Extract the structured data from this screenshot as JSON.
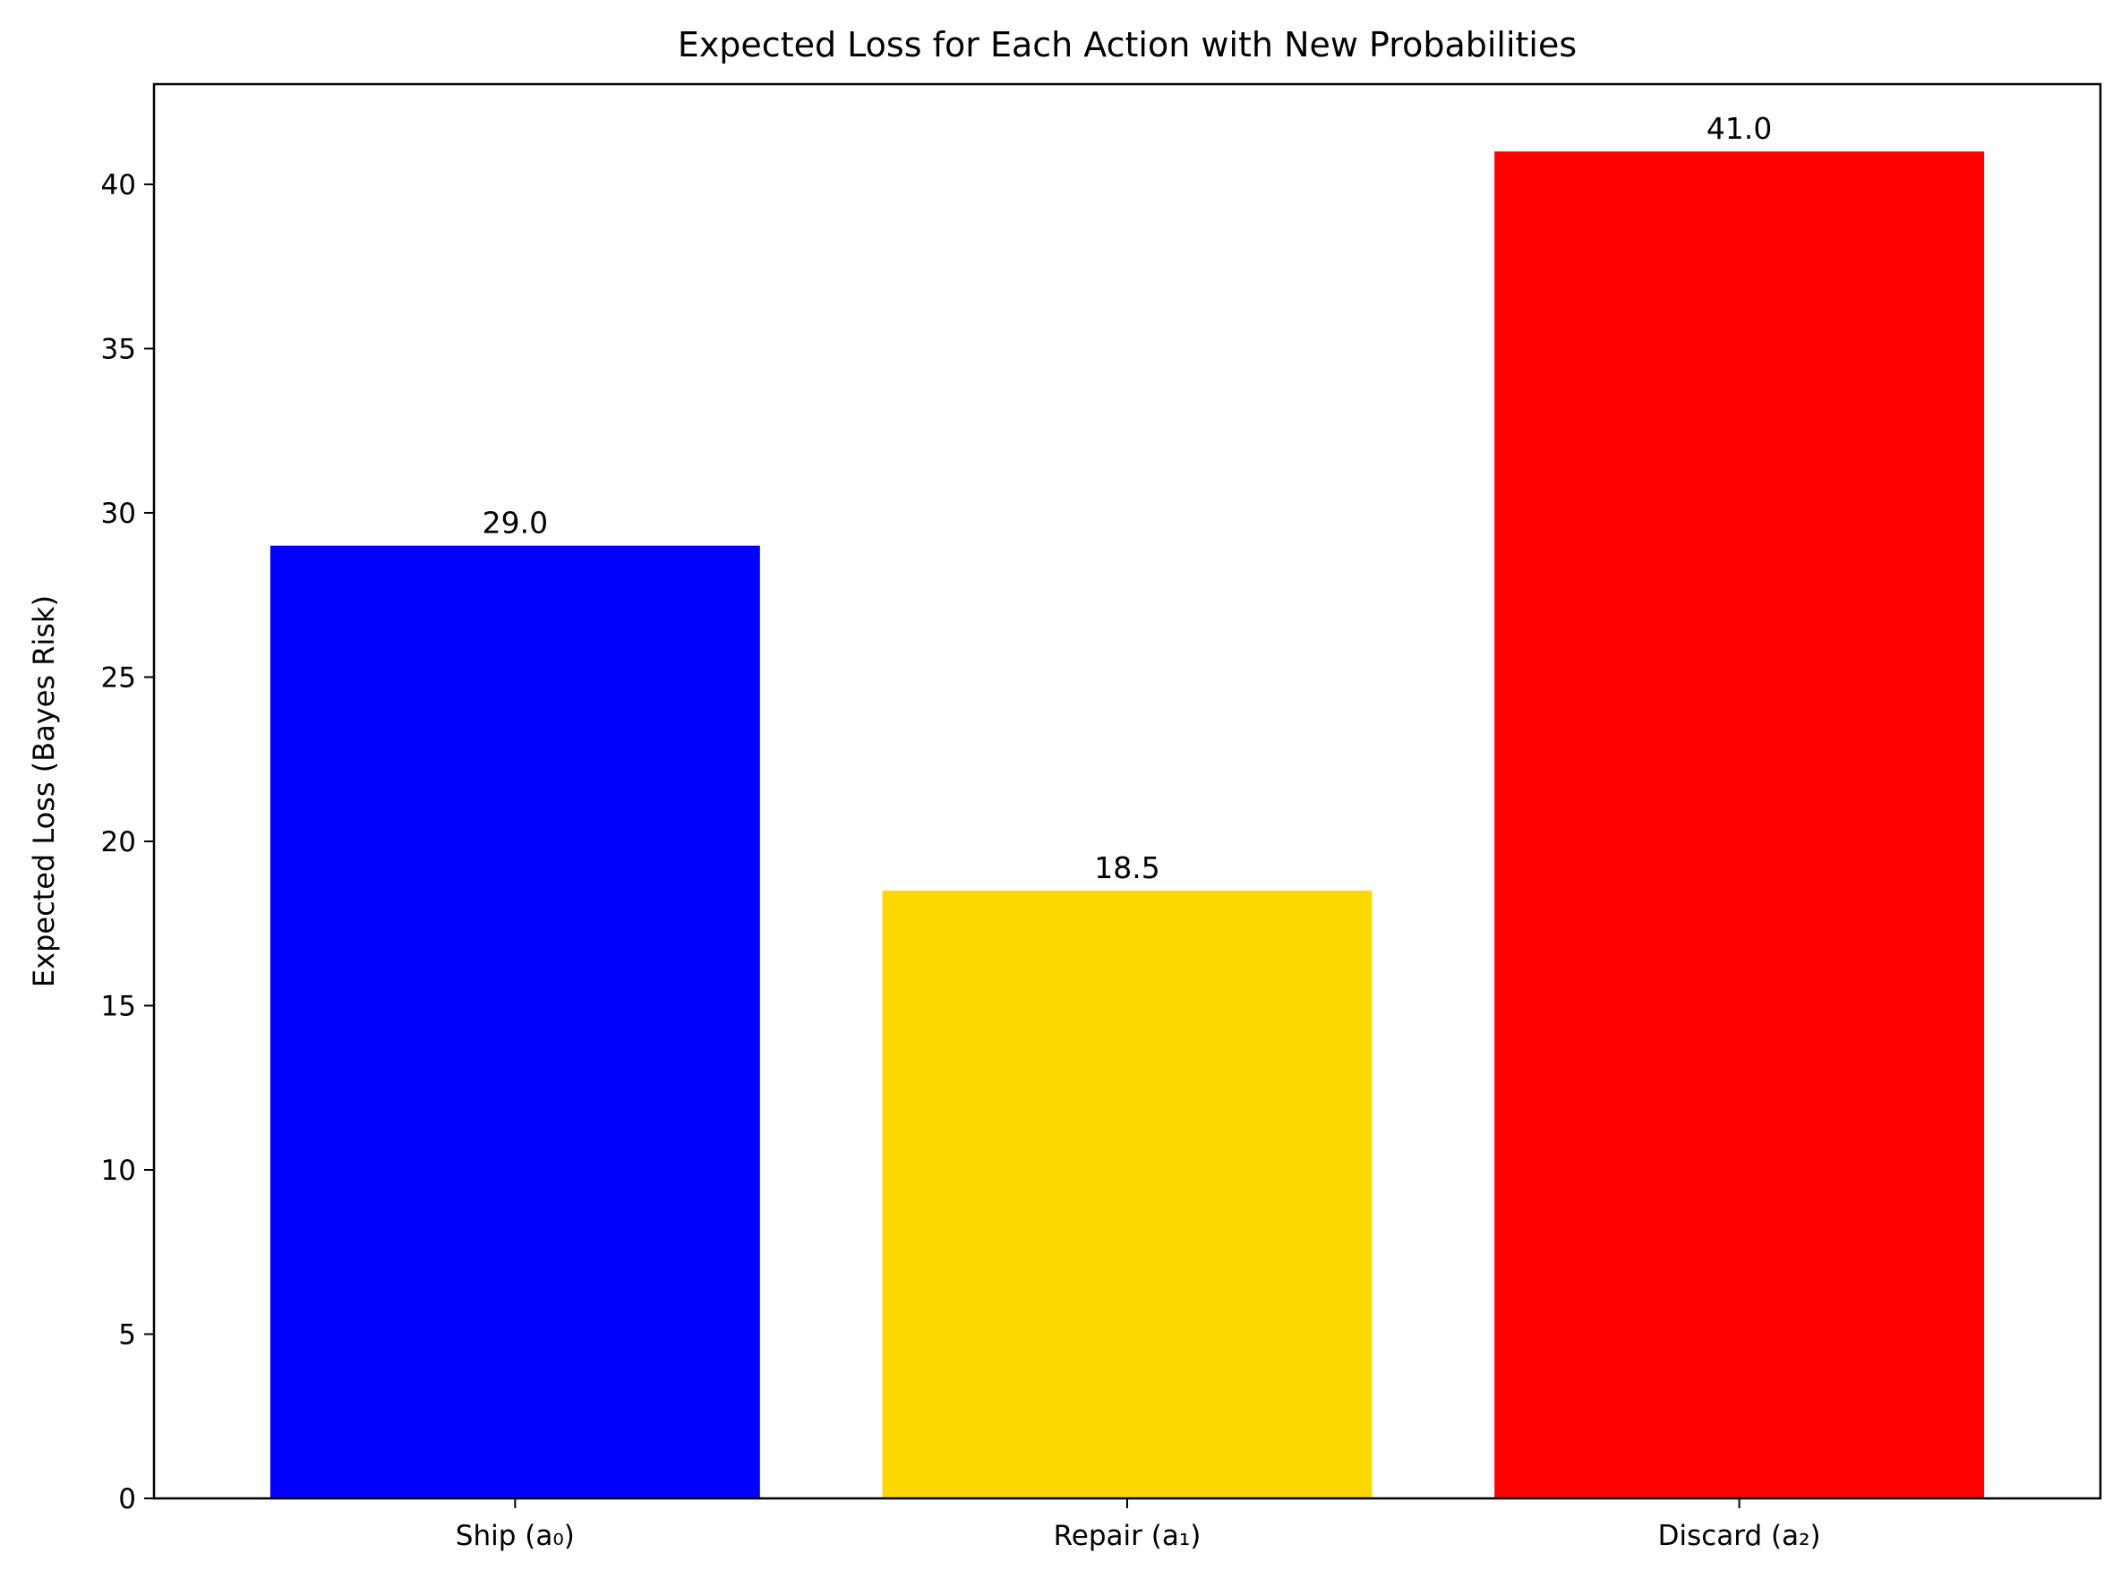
{
  "chart_data": {
    "type": "bar",
    "title": "Expected Loss for Each Action with New Probabilities",
    "xlabel": "",
    "ylabel": "Expected Loss (Bayes Risk)",
    "categories": [
      "Ship (a₀)",
      "Repair (a₁)",
      "Discard (a₂)"
    ],
    "values": [
      29.0,
      18.5,
      41.0
    ],
    "data_labels": [
      "29.0",
      "18.5",
      "41.0"
    ],
    "colors": [
      "#0000ff",
      "#ffd700",
      "#ff0000"
    ],
    "ylim": [
      0,
      43.05
    ],
    "yticks": [
      0,
      5,
      10,
      15,
      20,
      25,
      30,
      35,
      40
    ],
    "grid": false,
    "legend": "none"
  }
}
